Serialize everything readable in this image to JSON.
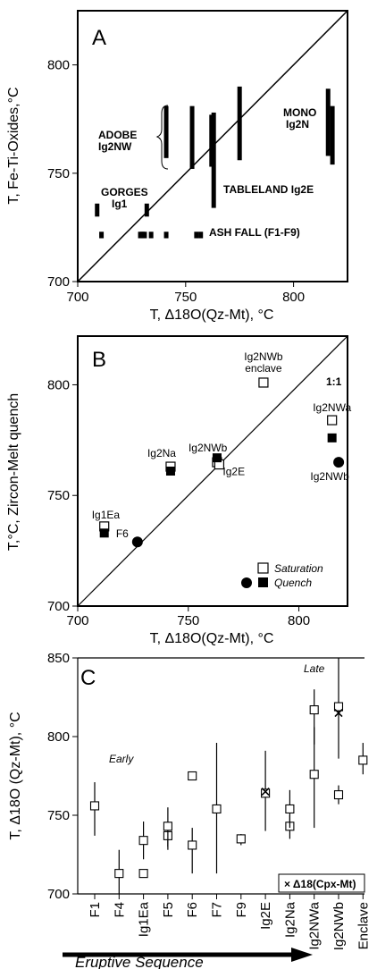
{
  "chart_data": [
    {
      "panel": "A",
      "type": "scatter",
      "xlabel": "T,  Δ18O(Qz-Mt), °C",
      "ylabel": "T, Fe-Ti-Oxides,°C",
      "xlim": [
        700,
        825
      ],
      "ylim": [
        700,
        825
      ],
      "x_ticks": [
        "700",
        "750",
        "800"
      ],
      "y_ticks": [
        "700",
        "750",
        "800"
      ],
      "reference_line": "1:1",
      "range_bars": [
        {
          "x": 709,
          "y": [
            730,
            736
          ]
        },
        {
          "x": 711,
          "y": [
            720,
            723
          ]
        },
        {
          "x": 729,
          "y": [
            720,
            723
          ]
        },
        {
          "x": 730,
          "y": [
            720,
            723
          ]
        },
        {
          "x": 731,
          "y": [
            720,
            723
          ]
        },
        {
          "x": 732,
          "y": [
            730,
            736
          ]
        },
        {
          "x": 734,
          "y": [
            720,
            723
          ]
        },
        {
          "x": 741,
          "y": [
            757,
            781
          ]
        },
        {
          "x": 741,
          "y": [
            720,
            723
          ]
        },
        {
          "x": 753,
          "y": [
            752,
            781
          ]
        },
        {
          "x": 755,
          "y": [
            720,
            723
          ]
        },
        {
          "x": 757,
          "y": [
            720,
            723
          ]
        },
        {
          "x": 762,
          "y": [
            753,
            777
          ]
        },
        {
          "x": 763,
          "y": [
            734,
            778
          ]
        },
        {
          "x": 775,
          "y": [
            756,
            790
          ]
        },
        {
          "x": 816,
          "y": [
            758,
            789
          ]
        },
        {
          "x": 818,
          "y": [
            754,
            781
          ]
        }
      ],
      "annotations": [
        "ADOBE",
        "Ig2NW",
        "GORGES",
        "Ig1",
        "TABLELAND Ig2E",
        "ASH FALL (F1-F9)",
        "MONO",
        "Ig2N"
      ]
    },
    {
      "panel": "B",
      "type": "scatter",
      "xlabel": "T, Δ18O(Qz-Mt), °C",
      "ylabel": "T,°C, Zircon-Melt quench",
      "xlim": [
        700,
        822
      ],
      "ylim": [
        700,
        822
      ],
      "x_ticks": [
        "700",
        "750",
        "800"
      ],
      "y_ticks": [
        "700",
        "750",
        "800"
      ],
      "reference_line": "1:1",
      "legend": {
        "saturation": "Saturation",
        "quench": "Quench"
      },
      "series": [
        {
          "name": "Saturation",
          "marker": "open-square",
          "points": [
            {
              "label": "Ig1Ea",
              "x": 712,
              "y": 736
            },
            {
              "label": "Ig2Na",
              "x": 742,
              "y": 763
            },
            {
              "label": "Ig2NWb",
              "x": 763,
              "y": 765
            },
            {
              "label": "Ig2E",
              "x": 764,
              "y": 764
            },
            {
              "label": "Ig2NWb enclave",
              "x": 784,
              "y": 801
            },
            {
              "label": "Ig2NWa",
              "x": 815,
              "y": 784
            }
          ]
        },
        {
          "name": "Quench",
          "marker": "filled-square",
          "points": [
            {
              "label": "Ig1Ea",
              "x": 712,
              "y": 733
            },
            {
              "label": "Ig2Na",
              "x": 742,
              "y": 761
            },
            {
              "label": "Ig2NWb",
              "x": 763,
              "y": 767
            },
            {
              "label": "Ig2NWa",
              "x": 815,
              "y": 776
            }
          ]
        },
        {
          "name": "Quench (circle)",
          "marker": "filled-circle",
          "points": [
            {
              "label": "F6",
              "x": 727,
              "y": 729
            },
            {
              "label": "Ig2NWb",
              "x": 818,
              "y": 765
            }
          ]
        }
      ]
    },
    {
      "panel": "C",
      "type": "scatter",
      "xlabel": "Eruptive Sequence",
      "ylabel": "T, Δ18O (Qz-Mt), °C",
      "ylim": [
        700,
        850
      ],
      "y_ticks": [
        "700",
        "750",
        "800",
        "850"
      ],
      "categories": [
        "F1",
        "F4",
        "Ig1Ea",
        "F5",
        "F6",
        "F7",
        "F9",
        "Ig2E",
        "Ig2Na",
        "Ig2NWa",
        "Ig2NWb",
        "Enclave"
      ],
      "annotations": [
        "Early",
        "Late"
      ],
      "legend": "× Δ18(Cpx-Mt)",
      "points": [
        {
          "cat": 0,
          "y": 756,
          "lo": 737,
          "hi": 771
        },
        {
          "cat": 1,
          "y": 713,
          "lo": 700,
          "hi": 728
        },
        {
          "cat": 2,
          "y": 734,
          "lo": 722,
          "hi": 746
        },
        {
          "cat": 2,
          "y": 713,
          "lo": 713,
          "hi": 713
        },
        {
          "cat": 3,
          "y": 737,
          "lo": 730,
          "hi": 745
        },
        {
          "cat": 3,
          "y": 743,
          "lo": 728,
          "hi": 755
        },
        {
          "cat": 4,
          "y": 775,
          "lo": 775,
          "hi": 775
        },
        {
          "cat": 4,
          "y": 731,
          "lo": 713,
          "hi": 742
        },
        {
          "cat": 5,
          "y": 754,
          "lo": 713,
          "hi": 796
        },
        {
          "cat": 6,
          "y": 735,
          "lo": 731,
          "hi": 738
        },
        {
          "cat": 7,
          "y": 764,
          "lo": 740,
          "hi": 791
        },
        {
          "cat": 8,
          "y": 743,
          "lo": 735,
          "hi": 750
        },
        {
          "cat": 8,
          "y": 754,
          "lo": 742,
          "hi": 766
        },
        {
          "cat": 9,
          "y": 776,
          "lo": 742,
          "hi": 806
        },
        {
          "cat": 9,
          "y": 817,
          "lo": 795,
          "hi": 830
        },
        {
          "cat": 10,
          "y": 819,
          "lo": 786,
          "hi": 850
        },
        {
          "cat": 10,
          "y": 763,
          "lo": 757,
          "hi": 769
        },
        {
          "cat": 11,
          "y": 785,
          "lo": 776,
          "hi": 796
        }
      ],
      "cross_points": [
        {
          "cat": 7,
          "y": 765
        },
        {
          "cat": 10,
          "y": 815
        }
      ]
    }
  ]
}
